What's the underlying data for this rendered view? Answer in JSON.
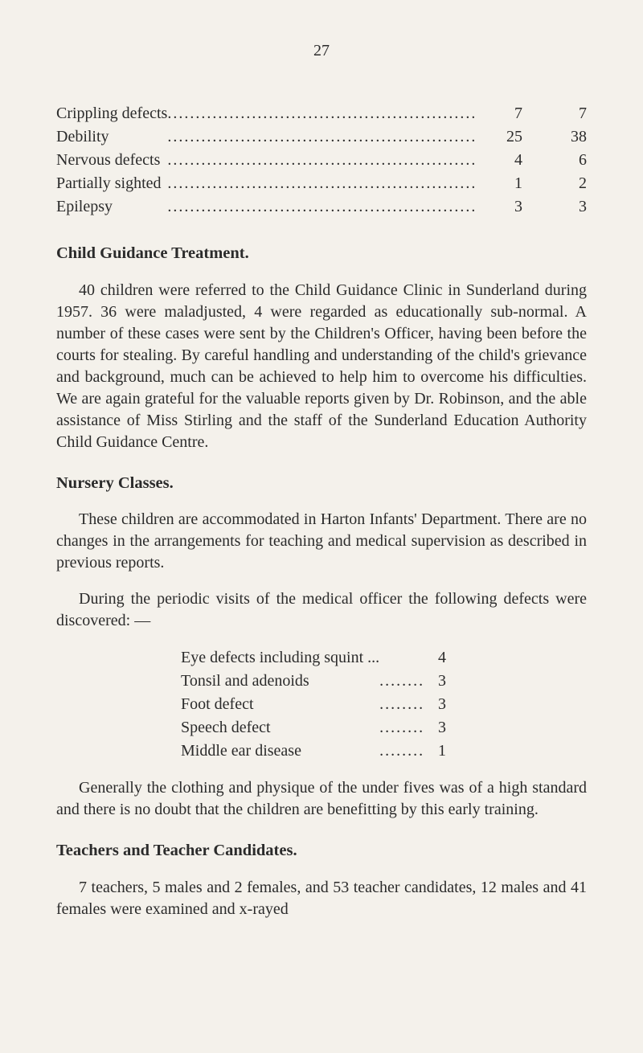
{
  "page_number": "27",
  "defects_list": {
    "rows": [
      {
        "label": "Crippling defects",
        "col1": "7",
        "col2": "7"
      },
      {
        "label": "Debility",
        "col1": "25",
        "col2": "38"
      },
      {
        "label": "Nervous defects",
        "col1": "4",
        "col2": "6"
      },
      {
        "label": "Partially sighted",
        "col1": "1",
        "col2": "2"
      },
      {
        "label": "Epilepsy",
        "col1": "3",
        "col2": "3"
      }
    ]
  },
  "sections": {
    "child_guidance": {
      "heading": "Child Guidance Treatment.",
      "para": "40 children were referred to the Child Guidance Clinic in Sunderland during 1957. 36 were maladjusted, 4 were regarded as educationally sub-normal. A number of these cases were sent by the Children's Officer, having been before the courts for stealing. By careful handling and understanding of the child's grievance and background, much can be achieved to help him to overcome his difficulties. We are again grateful for the valuable reports given by Dr. Robinson, and the able assistance of Miss Stirling and the staff of the Sunderland Education Authority Child Guidance Centre."
    },
    "nursery": {
      "heading": "Nursery Classes.",
      "para1": "These children are accommodated in Harton Infants' Department. There are no changes in the arrangements for teaching and medical supervision as described in previous reports.",
      "para2": "During the periodic visits of the medical officer the following defects were discovered: —",
      "found_defects": [
        {
          "label": "Eye defects including squint ...",
          "val": "4",
          "dots": false
        },
        {
          "label": "Tonsil and adenoids",
          "val": "3",
          "dots": true
        },
        {
          "label": "Foot defect",
          "val": "3",
          "dots": true
        },
        {
          "label": "Speech defect",
          "val": "3",
          "dots": true
        },
        {
          "label": "Middle ear disease",
          "val": "1",
          "dots": true
        }
      ],
      "para3": "Generally the clothing and physique of the under fives was of a high standard and there is no doubt that the children are benefitting by this early training."
    },
    "teachers": {
      "heading": "Teachers and Teacher Candidates.",
      "para": "7 teachers, 5 males and 2 females, and 53 teacher candidates, 12 males and 41 females were examined and x-rayed"
    }
  }
}
